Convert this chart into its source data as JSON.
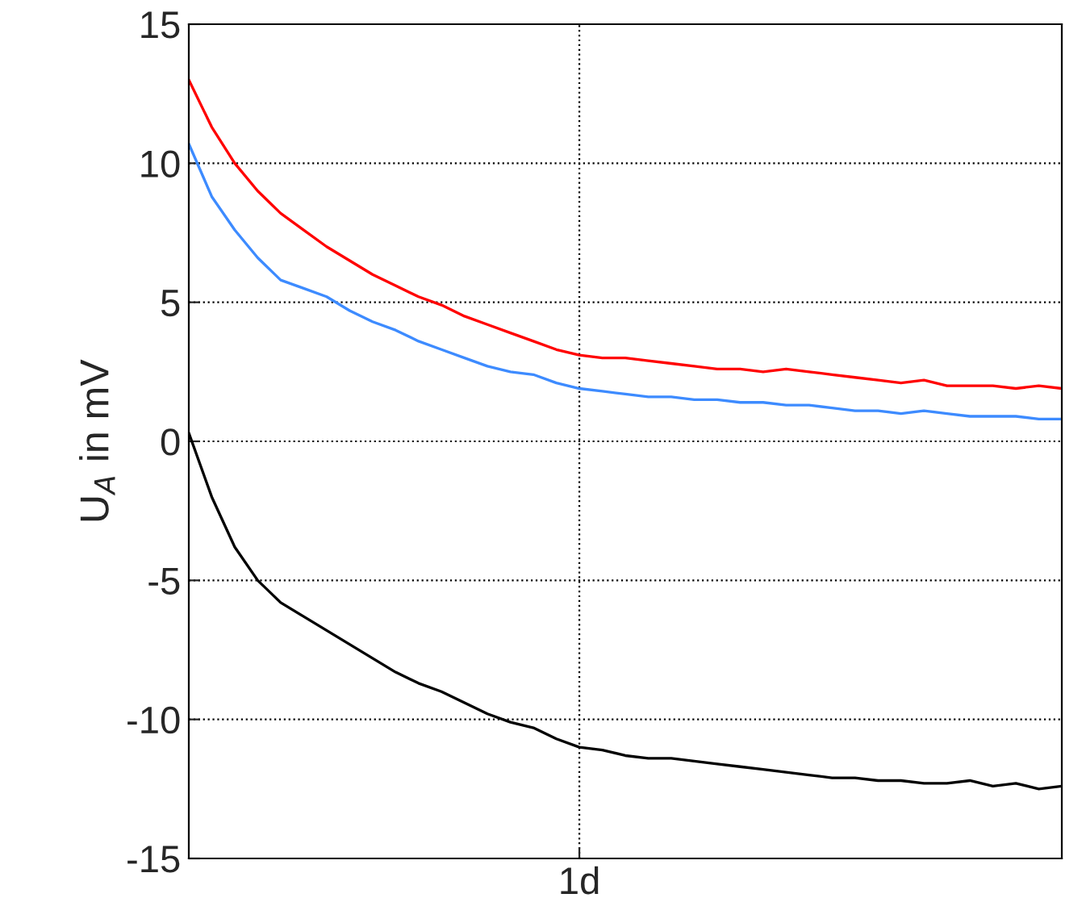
{
  "chart_data": {
    "type": "line",
    "ylabel": "U$_{A}$ in mV",
    "categories": [
      null,
      null,
      null,
      null,
      null,
      null,
      null,
      null,
      null,
      null,
      null,
      null,
      null,
      null,
      null,
      null,
      null,
      "1d",
      null,
      null,
      null,
      null,
      null,
      null,
      null,
      null,
      null,
      null,
      null,
      null,
      null,
      null,
      null,
      null,
      null,
      null,
      null,
      null,
      null
    ],
    "series": [
      {
        "color": "#ff0000",
        "values": [
          13.0,
          11.3,
          10.0,
          9.0,
          8.2,
          7.6,
          7.0,
          6.5,
          6.0,
          5.6,
          5.2,
          4.9,
          4.5,
          4.2,
          3.9,
          3.6,
          3.3,
          3.1,
          3.0,
          3.0,
          2.9,
          2.8,
          2.7,
          2.6,
          2.6,
          2.5,
          2.6,
          2.5,
          2.4,
          2.3,
          2.2,
          2.1,
          2.2,
          2.0,
          2.0,
          2.0,
          1.9,
          2.0,
          1.9
        ]
      },
      {
        "color": "#3d8bff",
        "values": [
          10.7,
          8.8,
          7.6,
          6.6,
          5.8,
          5.5,
          5.2,
          4.7,
          4.3,
          4.0,
          3.6,
          3.3,
          3.0,
          2.7,
          2.5,
          2.4,
          2.1,
          1.9,
          1.8,
          1.7,
          1.6,
          1.6,
          1.5,
          1.5,
          1.4,
          1.4,
          1.3,
          1.3,
          1.2,
          1.1,
          1.1,
          1.0,
          1.1,
          1.0,
          0.9,
          0.9,
          0.9,
          0.8,
          0.8
        ]
      },
      {
        "color": "#000000",
        "values": [
          0.3,
          -2.0,
          -3.8,
          -5.0,
          -5.8,
          -6.3,
          -6.8,
          -7.3,
          -7.8,
          -8.3,
          -8.7,
          -9.0,
          -9.4,
          -9.8,
          -10.1,
          -10.3,
          -10.7,
          -11.0,
          -11.1,
          -11.3,
          -11.4,
          -11.4,
          -11.5,
          -11.6,
          -11.7,
          -11.8,
          -11.9,
          -12.0,
          -12.1,
          -12.1,
          -12.2,
          -12.2,
          -12.3,
          -12.3,
          -12.2,
          -12.4,
          -12.3,
          -12.5,
          -12.4
        ]
      }
    ],
    "ylim": [
      -15,
      15
    ],
    "yticks": [
      -15,
      -10,
      -5,
      0,
      5,
      10,
      15
    ],
    "grid": true,
    "line_style": "solid"
  }
}
